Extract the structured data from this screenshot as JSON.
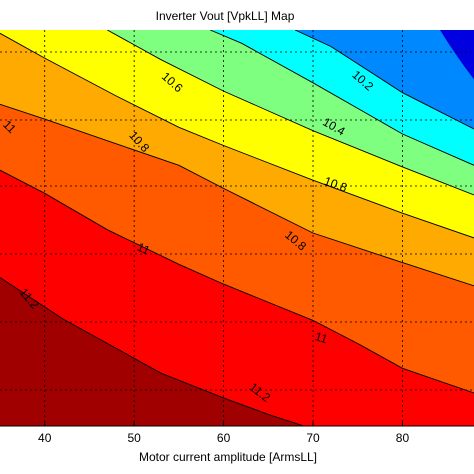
{
  "chart_data": {
    "type": "heatmap",
    "title": "Inverter Vout [VpkLL] Map",
    "xlabel": "Motor current amplitude [ArmsLL]",
    "ylabel": "",
    "xlim": [
      35,
      88
    ],
    "ylim": [
      0,
      12
    ],
    "xticks": [
      40,
      50,
      60,
      70,
      80
    ],
    "grid": true,
    "colormap": "jet",
    "levels": [
      10.0,
      10.2,
      10.4,
      10.6,
      10.8,
      11.0,
      11.2,
      11.4
    ],
    "band_colors": [
      "#0000e0",
      "#0088ff",
      "#00ffff",
      "#7fff7f",
      "#ffff00",
      "#ffaa00",
      "#ff5a00",
      "#ff0000",
      "#a00000"
    ],
    "contours": [
      {
        "level": 10.2,
        "points": [
          [
            68.0,
            12.0
          ],
          [
            72,
            11.5
          ],
          [
            80,
            10.1
          ],
          [
            88,
            9.0
          ]
        ]
      },
      {
        "level": 10.4,
        "points": [
          [
            58.5,
            12.0
          ],
          [
            62,
            11.6
          ],
          [
            70,
            10.4
          ],
          [
            80,
            8.85
          ],
          [
            88,
            7.9
          ]
        ]
      },
      {
        "level": 10.6,
        "points": [
          [
            47.0,
            12.0
          ],
          [
            53,
            11.1
          ],
          [
            60,
            10.15
          ],
          [
            70,
            8.95
          ],
          [
            80,
            7.85
          ],
          [
            88,
            7.0
          ]
        ]
      },
      {
        "level": 10.8,
        "points": [
          [
            35,
            11.9
          ],
          [
            40,
            11.15
          ],
          [
            48,
            10.0
          ],
          [
            55,
            9.05
          ],
          [
            60,
            8.5
          ],
          [
            70,
            7.45
          ],
          [
            80,
            6.45
          ],
          [
            88,
            5.7
          ]
        ]
      },
      {
        "level": 11.0,
        "points": [
          [
            35,
            9.75
          ],
          [
            40,
            9.3
          ],
          [
            48,
            8.55
          ],
          [
            55,
            7.9
          ],
          [
            60,
            7.2
          ],
          [
            70,
            5.85
          ],
          [
            80,
            4.95
          ],
          [
            88,
            4.25
          ]
        ]
      },
      {
        "level": 11.2,
        "points": [
          [
            35,
            7.75
          ],
          [
            40,
            7.05
          ],
          [
            47,
            5.95
          ],
          [
            55,
            4.9
          ],
          [
            60,
            4.3
          ],
          [
            70,
            3.2
          ],
          [
            75,
            2.5
          ],
          [
            80,
            1.75
          ],
          [
            88,
            1.0
          ]
        ]
      },
      {
        "level": 11.4,
        "points": [
          [
            35,
            4.5
          ],
          [
            42,
            3.25
          ],
          [
            48,
            2.35
          ],
          [
            53,
            1.6
          ],
          [
            60,
            0.85
          ],
          [
            65,
            0.35
          ],
          [
            69,
            0.0
          ]
        ]
      }
    ],
    "contour_labels": [
      {
        "text": "10.2",
        "x": 75.5,
        "y": 10.45,
        "angle": 42
      },
      {
        "text": "10.4",
        "x": 72.3,
        "y": 9.05,
        "angle": 30
      },
      {
        "text": "10.6",
        "x": 54.2,
        "y": 10.4,
        "angle": 42
      },
      {
        "text": "10.8",
        "x": 50.5,
        "y": 8.6,
        "angle": 48
      },
      {
        "text": "10.8",
        "x": 72.5,
        "y": 7.3,
        "angle": 20
      },
      {
        "text": "10.8",
        "x": 68.0,
        "y": 5.6,
        "angle": 40
      },
      {
        "text": "11",
        "x": 36.0,
        "y": 9.05,
        "angle": 45
      },
      {
        "text": "11",
        "x": 51.0,
        "y": 5.35,
        "angle": 25
      },
      {
        "text": "11",
        "x": 70.9,
        "y": 2.65,
        "angle": 18
      },
      {
        "text": "11.2",
        "x": 38.2,
        "y": 3.85,
        "angle": 50
      },
      {
        "text": "11.2",
        "x": 64.0,
        "y": 1.0,
        "angle": 38
      }
    ]
  }
}
